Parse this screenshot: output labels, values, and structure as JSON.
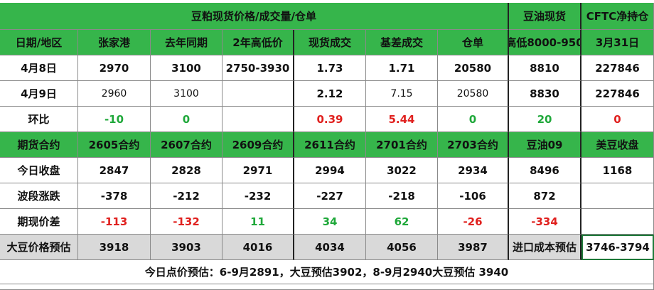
{
  "header": {
    "title": "豆粕现货价格/成交量/仓单",
    "soy_oil_spot": "豆油现货",
    "cftc": "CFTC净持仓"
  },
  "table": {
    "rows": [
      [
        "日期/地区",
        "张家港",
        "去年同期",
        "2年高低价",
        "现货成交",
        "基差成交",
        "仓单",
        "高低8000-950",
        "3月31日"
      ],
      [
        "4月8日",
        "2970",
        "3100",
        "2750-3930",
        "1.73",
        "1.71",
        "20580",
        "8810",
        "227846"
      ],
      [
        "4月9日",
        "2960",
        "3100",
        null,
        "2.12",
        "7.15",
        "20580",
        "8830",
        "227846"
      ],
      [
        "环比",
        "-10",
        "0",
        null,
        "0.39",
        "5.44",
        "0",
        "20",
        "0"
      ],
      [
        "期货合约",
        "2605合约",
        "2607合约",
        "2609合约",
        "2611合约",
        "2701合约",
        "2703合约",
        "豆油09",
        "美豆收盘"
      ],
      [
        "今日收盘",
        "2847",
        "2828",
        "2971",
        "2994",
        "3022",
        "2934",
        "8496",
        "1168"
      ],
      [
        "波段涨跌",
        "-378",
        "-212",
        "-232",
        "-227",
        "-218",
        "-106",
        "872",
        null
      ],
      [
        "期现价差",
        "-113",
        "-132",
        "11",
        "34",
        "62",
        "-26",
        "-334",
        null
      ],
      [
        "大豆价格预估",
        "3918",
        "3903",
        "4016",
        "4034",
        "4056",
        "3987",
        "进口成本预估",
        "3746-3794"
      ]
    ]
  },
  "footer": "今日点价预估：6-9月2891，大豆预估3902，8-9月2940大豆预估 3940"
}
